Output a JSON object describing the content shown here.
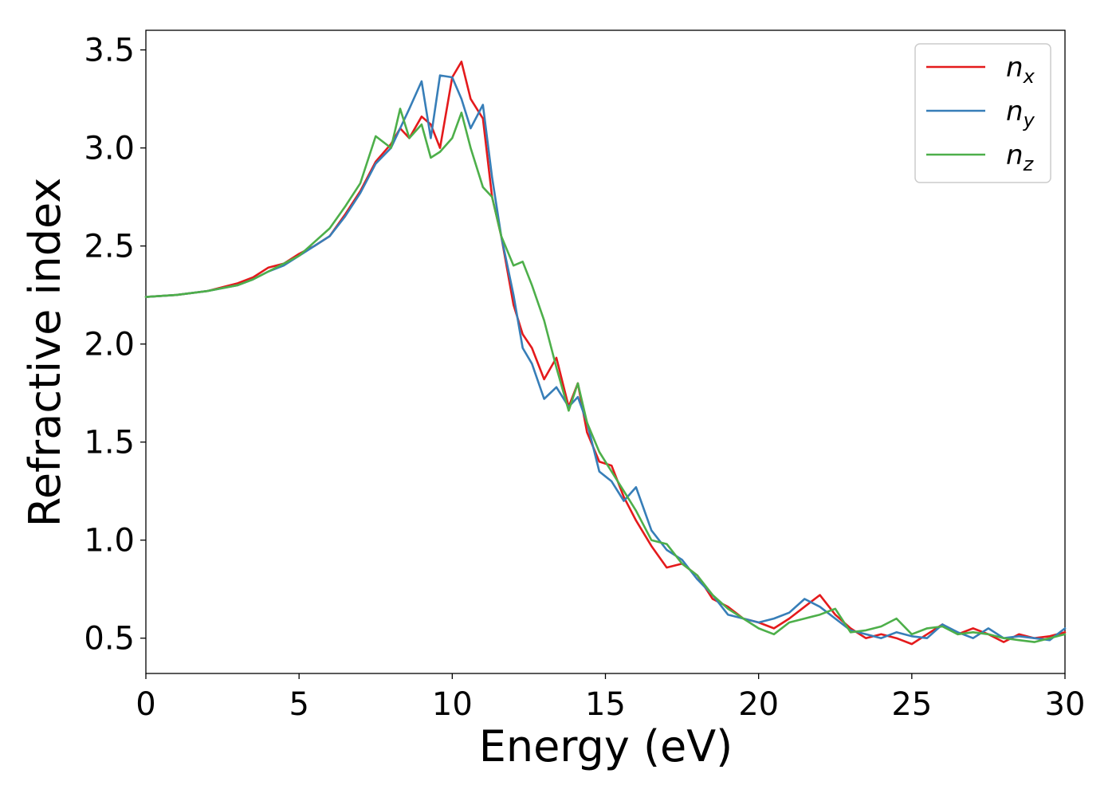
{
  "chart_data": {
    "type": "line",
    "xlabel": "Energy (eV)",
    "ylabel": "Refractive index",
    "xlim": [
      0,
      30
    ],
    "ylim": [
      0.32,
      3.6
    ],
    "xticks": [
      0,
      5,
      10,
      15,
      20,
      25,
      30
    ],
    "xtick_labels": [
      "0",
      "5",
      "10",
      "15",
      "20",
      "25",
      "30"
    ],
    "yticks": [
      0.5,
      1.0,
      1.5,
      2.0,
      2.5,
      3.0,
      3.5
    ],
    "ytick_labels": [
      "0.5",
      "1.0",
      "1.5",
      "2.0",
      "2.5",
      "3.0",
      "3.5"
    ],
    "grid": false,
    "legend_position": "top-right",
    "series": [
      {
        "name": "n_x",
        "label_base": "n",
        "label_sub": "x",
        "color": "#e41a1c",
        "x": [
          0,
          1,
          2,
          3,
          3.5,
          4,
          4.5,
          5,
          5.5,
          6,
          6.5,
          7,
          7.5,
          8,
          8.3,
          8.6,
          9,
          9.3,
          9.6,
          10,
          10.3,
          10.6,
          11,
          11.3,
          11.6,
          12,
          12.3,
          12.6,
          13,
          13.4,
          13.8,
          14.1,
          14.4,
          14.8,
          15.2,
          15.6,
          16,
          16.5,
          17,
          17.5,
          18,
          18.5,
          19,
          19.5,
          20,
          20.5,
          21,
          21.5,
          22,
          22.5,
          23,
          23.5,
          24,
          24.5,
          25,
          25.5,
          26,
          26.5,
          27,
          27.5,
          28,
          28.5,
          29,
          29.5,
          30
        ],
        "y": [
          2.24,
          2.25,
          2.27,
          2.31,
          2.34,
          2.39,
          2.41,
          2.46,
          2.5,
          2.55,
          2.66,
          2.78,
          2.93,
          3.02,
          3.1,
          3.05,
          3.16,
          3.12,
          3.0,
          3.36,
          3.44,
          3.25,
          3.15,
          2.75,
          2.55,
          2.2,
          2.05,
          1.98,
          1.82,
          1.93,
          1.68,
          1.8,
          1.55,
          1.4,
          1.38,
          1.22,
          1.1,
          0.97,
          0.86,
          0.88,
          0.82,
          0.7,
          0.66,
          0.6,
          0.58,
          0.55,
          0.6,
          0.66,
          0.72,
          0.62,
          0.55,
          0.5,
          0.52,
          0.5,
          0.47,
          0.52,
          0.57,
          0.52,
          0.55,
          0.52,
          0.48,
          0.52,
          0.5,
          0.51,
          0.53
        ]
      },
      {
        "name": "n_y",
        "label_base": "n",
        "label_sub": "y",
        "color": "#377eb8",
        "x": [
          0,
          1,
          2,
          3,
          3.5,
          4,
          4.5,
          5,
          5.5,
          6,
          6.5,
          7,
          7.5,
          8,
          8.3,
          8.6,
          9,
          9.3,
          9.6,
          10,
          10.3,
          10.6,
          11,
          11.3,
          11.6,
          12,
          12.3,
          12.6,
          13,
          13.4,
          13.8,
          14.1,
          14.4,
          14.8,
          15.2,
          15.6,
          16,
          16.5,
          17,
          17.5,
          18,
          18.5,
          19,
          19.5,
          20,
          20.5,
          21,
          21.5,
          22,
          22.5,
          23,
          23.5,
          24,
          24.5,
          25,
          25.5,
          26,
          26.5,
          27,
          27.5,
          28,
          28.5,
          29,
          29.5,
          30
        ],
        "y": [
          2.24,
          2.25,
          2.27,
          2.3,
          2.33,
          2.37,
          2.4,
          2.45,
          2.5,
          2.55,
          2.65,
          2.77,
          2.92,
          3.0,
          3.1,
          3.2,
          3.34,
          3.05,
          3.37,
          3.36,
          3.25,
          3.1,
          3.22,
          2.85,
          2.55,
          2.25,
          1.98,
          1.9,
          1.72,
          1.78,
          1.68,
          1.73,
          1.6,
          1.35,
          1.3,
          1.2,
          1.27,
          1.05,
          0.95,
          0.9,
          0.8,
          0.72,
          0.62,
          0.6,
          0.58,
          0.6,
          0.63,
          0.7,
          0.66,
          0.6,
          0.54,
          0.52,
          0.5,
          0.53,
          0.51,
          0.5,
          0.57,
          0.53,
          0.5,
          0.55,
          0.5,
          0.51,
          0.5,
          0.49,
          0.55
        ]
      },
      {
        "name": "n_z",
        "label_base": "n",
        "label_sub": "z",
        "color": "#4daf4a",
        "x": [
          0,
          1,
          2,
          3,
          3.5,
          4,
          4.5,
          5,
          5.5,
          6,
          6.5,
          7,
          7.5,
          8,
          8.3,
          8.6,
          9,
          9.3,
          9.6,
          10,
          10.3,
          10.6,
          11,
          11.3,
          11.6,
          12,
          12.3,
          12.6,
          13,
          13.4,
          13.8,
          14.1,
          14.4,
          14.8,
          15.2,
          15.6,
          16,
          16.5,
          17,
          17.5,
          18,
          18.5,
          19,
          19.5,
          20,
          20.5,
          21,
          21.5,
          22,
          22.5,
          23,
          23.5,
          24,
          24.5,
          25,
          25.5,
          26,
          26.5,
          27,
          27.5,
          28,
          28.5,
          29,
          29.5,
          30
        ],
        "y": [
          2.24,
          2.25,
          2.27,
          2.3,
          2.33,
          2.37,
          2.41,
          2.45,
          2.52,
          2.59,
          2.7,
          2.82,
          3.06,
          3.0,
          3.2,
          3.05,
          3.12,
          2.95,
          2.98,
          3.05,
          3.18,
          3.0,
          2.8,
          2.75,
          2.55,
          2.4,
          2.42,
          2.3,
          2.12,
          1.88,
          1.66,
          1.8,
          1.6,
          1.45,
          1.35,
          1.25,
          1.15,
          1.0,
          0.98,
          0.88,
          0.82,
          0.72,
          0.65,
          0.6,
          0.55,
          0.52,
          0.58,
          0.6,
          0.62,
          0.65,
          0.53,
          0.54,
          0.56,
          0.6,
          0.52,
          0.55,
          0.56,
          0.52,
          0.53,
          0.52,
          0.5,
          0.49,
          0.48,
          0.5,
          0.52
        ]
      }
    ]
  }
}
